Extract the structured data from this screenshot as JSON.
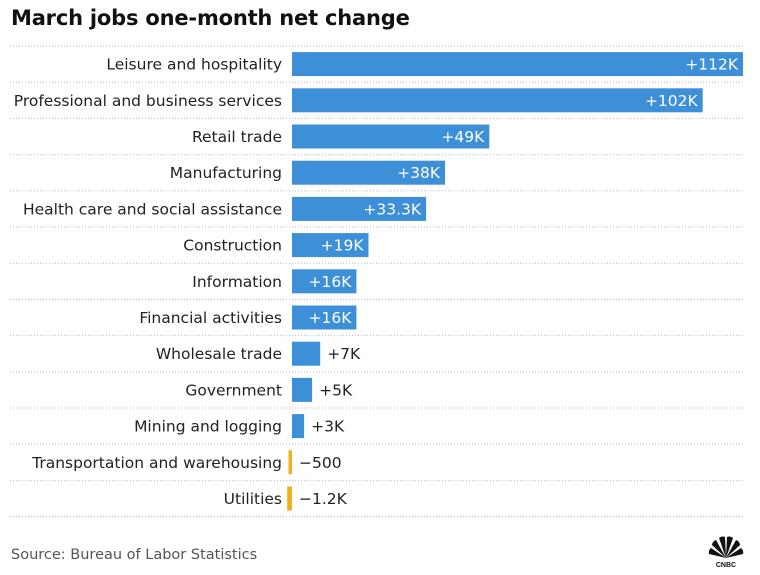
{
  "title": "March jobs one-month net change",
  "source": "Source: Bureau of Labor Statistics",
  "logo_text": "CNBC",
  "colors": {
    "positive": "#3d8fd8",
    "negative": "#f2b01e",
    "divider": "#bbbbbb"
  },
  "chart_data": {
    "type": "bar",
    "orientation": "horizontal",
    "title": "March jobs one-month net change",
    "categories": [
      "Leisure and hospitality",
      "Professional and business services",
      "Retail trade",
      "Manufacturing",
      "Health care and social assistance",
      "Construction",
      "Information",
      "Financial activities",
      "Wholesale trade",
      "Government",
      "Mining and logging",
      "Transportation and warehousing",
      "Utilities"
    ],
    "values": [
      112000,
      102000,
      49000,
      38000,
      33300,
      19000,
      16000,
      16000,
      7000,
      5000,
      3000,
      -500,
      -1200
    ],
    "labels": [
      "+112K",
      "+102K",
      "+49K",
      "+38K",
      "+33.3K",
      "+19K",
      "+16K",
      "+16K",
      "+7K",
      "+5K",
      "+3K",
      "−500",
      "−1.2K"
    ],
    "xlim": [
      0,
      112000
    ],
    "grid": false,
    "legend": "none"
  }
}
